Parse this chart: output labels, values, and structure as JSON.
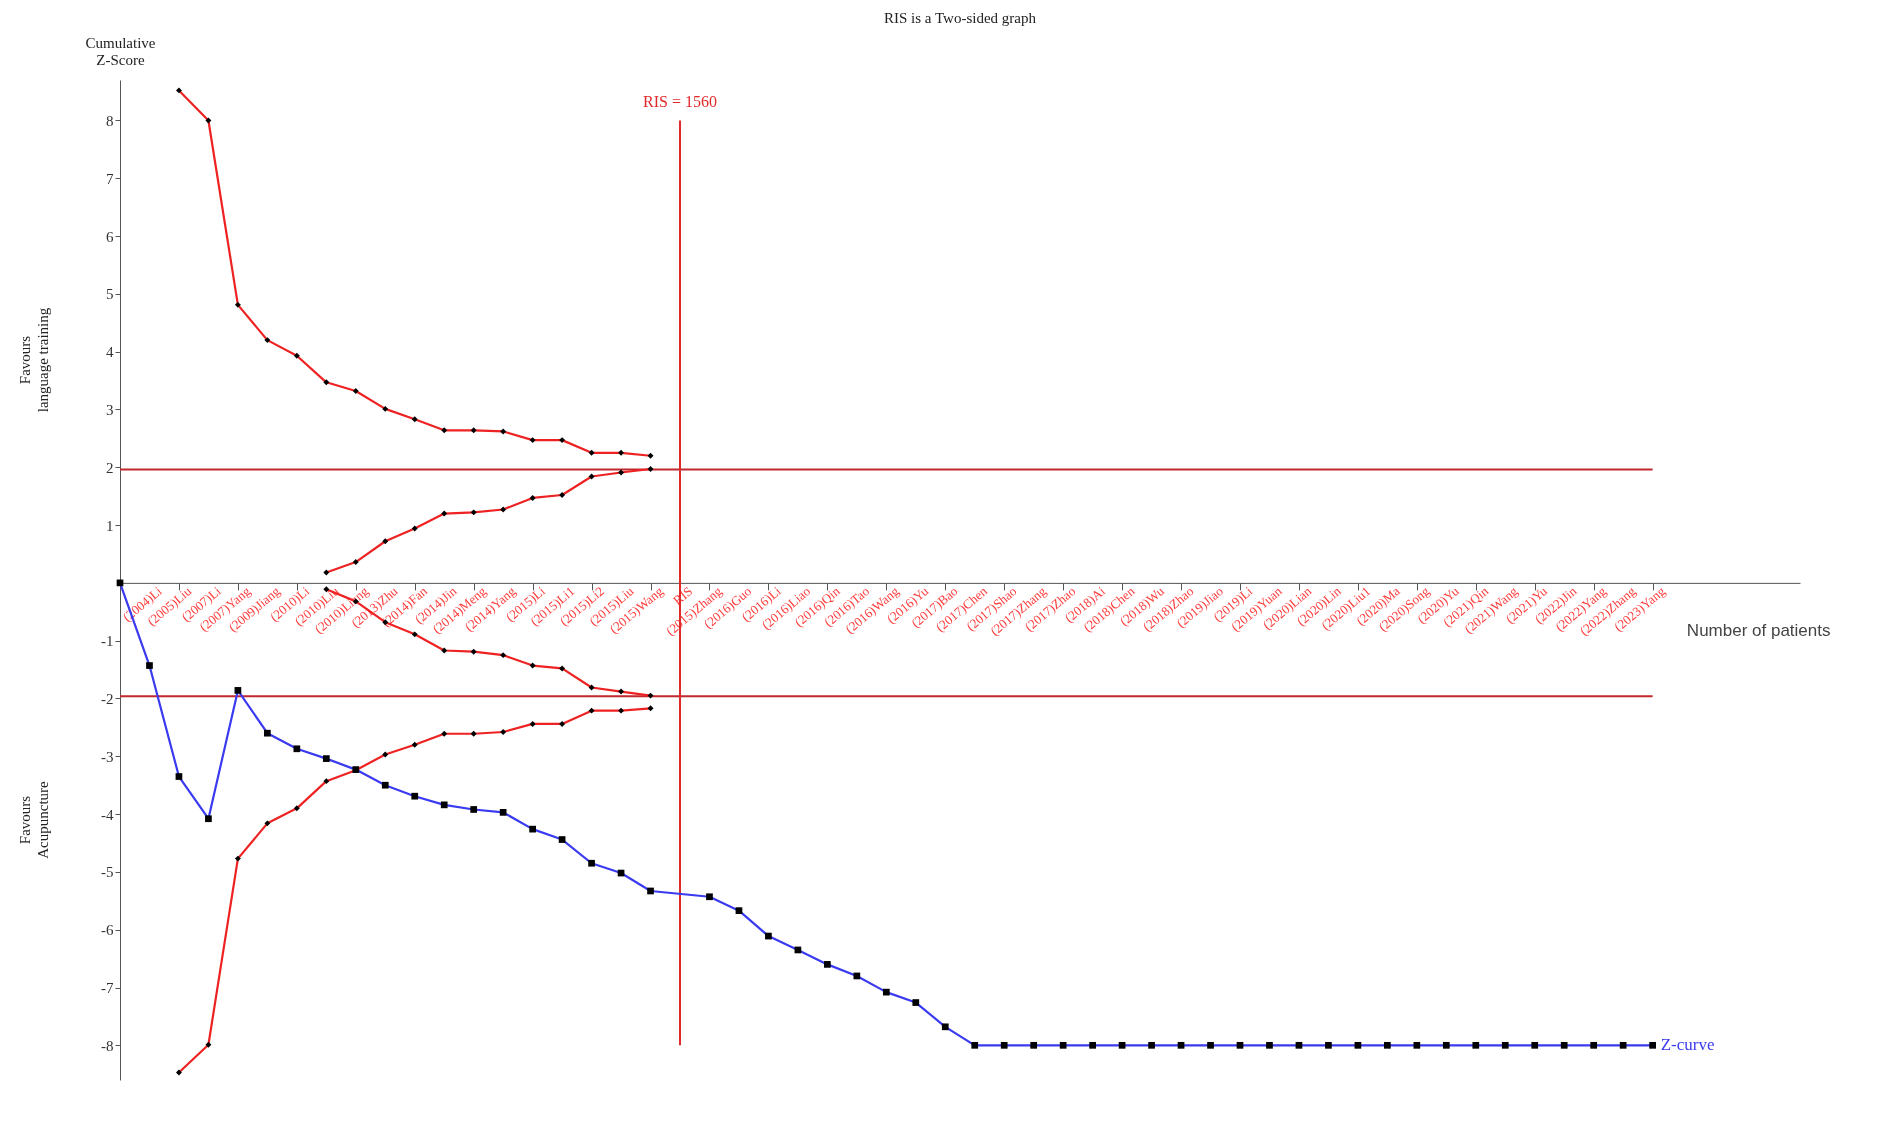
{
  "chart_data": {
    "type": "line",
    "title": "RIS is a Two-sided graph",
    "xlabel": "Number of patients",
    "ylabel": "Cumulative Z-Score",
    "categories": [
      null,
      "(2004)Li",
      "(2005)Liu",
      "(2007)Li",
      "(2007)Yang",
      "(2009)Jiang",
      "(2010)Li",
      "(2010)Liu",
      "(2010)Liang",
      "(2013)Zhu",
      "(2014)Fan",
      "(2014)Jin",
      "(2014)Meng",
      "(2014)Yang",
      "(2015)Li",
      "(2015)Li1",
      "(2015)Li2",
      "(2015)Liu",
      "(2015)Wang",
      "RIS",
      "(2015)Zhang",
      "(2016)Guo",
      "(2016)Li",
      "(2016)Liao",
      "(2016)Qin",
      "(2016)Tao",
      "(2016)Wang",
      "(2016)Yu",
      "(2017)Bao",
      "(2017)Chen",
      "(2017)Shao",
      "(2017)Zhang",
      "(2017)Zhao",
      "(2018)Ai",
      "(2018)Chen",
      "(2018)Wu",
      "(2018)Zhao",
      "(2019)Jiao",
      "(2019)Li",
      "(2019)Yuan",
      "(2020)Lian",
      "(2020)Lin",
      "(2020)Liu1",
      "(2020)Ma",
      "(2020)Song",
      "(2020)Yu",
      "(2021)Qin",
      "(2021)Wang",
      "(2021)Yu",
      "(2022)Jin",
      "(2022)Yang",
      "(2022)Zhang",
      "(2023)Yang"
    ],
    "series": [
      {
        "color": "#ee2222",
        "marker": "diamond",
        "values": [
          null,
          null,
          8.52,
          8,
          4.81,
          4.2,
          3.93,
          3.47,
          3.32,
          3.01,
          2.83,
          2.64,
          2.64,
          2.62,
          2.47,
          2.47,
          2.25,
          2.25,
          2.2,
          null,
          null,
          null,
          null,
          null,
          null,
          null,
          null,
          null,
          null,
          null,
          null,
          null,
          null,
          null,
          null,
          null,
          null,
          null,
          null,
          null,
          null,
          null,
          null,
          null,
          null,
          null,
          null,
          null,
          null,
          null,
          null,
          null,
          null
        ]
      },
      {
        "color": "#ee2222",
        "marker": "diamond",
        "values": [
          null,
          null,
          null,
          null,
          null,
          null,
          null,
          0.18,
          0.36,
          0.72,
          0.94,
          1.2,
          1.22,
          1.27,
          1.47,
          1.52,
          1.84,
          1.91,
          1.97,
          null,
          null,
          null,
          null,
          null,
          null,
          null,
          null,
          null,
          null,
          null,
          null,
          null,
          null,
          null,
          null,
          null,
          null,
          null,
          null,
          null,
          null,
          null,
          null,
          null,
          null,
          null,
          null,
          null,
          null,
          null,
          null,
          null,
          null
        ]
      },
      {
        "color": "#ee2222",
        "marker": "diamond",
        "values": [
          null,
          null,
          null,
          null,
          null,
          null,
          null,
          -0.11,
          -0.32,
          -0.68,
          -0.89,
          -1.17,
          -1.19,
          -1.25,
          -1.43,
          -1.48,
          -1.81,
          -1.88,
          -1.95,
          null,
          null,
          null,
          null,
          null,
          null,
          null,
          null,
          null,
          null,
          null,
          null,
          null,
          null,
          null,
          null,
          null,
          null,
          null,
          null,
          null,
          null,
          null,
          null,
          null,
          null,
          null,
          null,
          null,
          null,
          null,
          null,
          null,
          null
        ]
      },
      {
        "color": "#ee2222",
        "marker": "diamond",
        "values": [
          null,
          null,
          -8.47,
          -7.99,
          -4.77,
          -4.16,
          -3.9,
          -3.43,
          -3.24,
          -2.97,
          -2.8,
          -2.61,
          -2.61,
          -2.58,
          -2.44,
          -2.44,
          -2.21,
          -2.21,
          -2.17,
          null,
          null,
          null,
          null,
          null,
          null,
          null,
          null,
          null,
          null,
          null,
          null,
          null,
          null,
          null,
          null,
          null,
          null,
          null,
          null,
          null,
          null,
          null,
          null,
          null,
          null,
          null,
          null,
          null,
          null,
          null,
          null,
          null,
          null
        ]
      },
      {
        "name": "Z-curve",
        "color": "#3a3af0",
        "marker": "square",
        "values": [
          0,
          -1.43,
          -3.35,
          -4.08,
          -1.86,
          -2.6,
          -2.87,
          -3.04,
          -3.23,
          -3.5,
          -3.69,
          -3.84,
          -3.92,
          -3.97,
          -4.26,
          -4.44,
          -4.85,
          -5.02,
          -5.33,
          null,
          -5.43,
          -5.67,
          -6.11,
          -6.35,
          -6.6,
          -6.8,
          -7.08,
          -7.26,
          -7.68,
          -8,
          -8,
          -8,
          -8,
          -8,
          -8,
          -8,
          -8,
          -8,
          -8,
          -8,
          -8,
          -8,
          -8,
          -8,
          -8,
          -8,
          -8,
          -8,
          -8,
          -8,
          -8,
          -8,
          -8
        ]
      }
    ],
    "ylim": [
      -8.6,
      8.7
    ],
    "yticks": [
      -8,
      -7,
      -6,
      -5,
      -4,
      -3,
      -2,
      -1,
      1,
      2,
      3,
      4,
      5,
      6,
      7,
      8
    ],
    "ref_lines": [
      {
        "axis": "y",
        "value": 1.96,
        "color": "#c0282d"
      },
      {
        "axis": "y",
        "value": -1.96,
        "color": "#c0282d"
      },
      {
        "axis": "x",
        "value": "RIS",
        "label": "RIS = 1560",
        "color": "#e02a2a"
      }
    ],
    "annotations": [
      "Favours language training",
      "Favours Acupuncture"
    ]
  }
}
